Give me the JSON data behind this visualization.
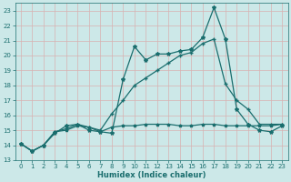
{
  "xlabel": "Humidex (Indice chaleur)",
  "bg_color": "#cce8e8",
  "grid_color": "#b8d8d8",
  "line_color": "#1a6e6e",
  "xlim": [
    -0.5,
    23.5
  ],
  "ylim": [
    13,
    23.5
  ],
  "yticks": [
    13,
    14,
    15,
    16,
    17,
    18,
    19,
    20,
    21,
    22,
    23
  ],
  "xticks": [
    0,
    1,
    2,
    3,
    4,
    5,
    6,
    7,
    8,
    9,
    10,
    11,
    12,
    13,
    14,
    15,
    16,
    17,
    18,
    19,
    20,
    21,
    22,
    23
  ],
  "line1_x": [
    0,
    1,
    2,
    3,
    4,
    5,
    6,
    7,
    8,
    9,
    10,
    11,
    12,
    13,
    14,
    15,
    16,
    17,
    18,
    19,
    20,
    21,
    22,
    23
  ],
  "line1_y": [
    14.1,
    13.6,
    14.0,
    14.8,
    15.3,
    15.4,
    15.0,
    14.9,
    14.8,
    18.4,
    20.6,
    19.7,
    20.1,
    20.1,
    20.3,
    20.4,
    21.2,
    23.2,
    21.1,
    16.4,
    15.4,
    15.0,
    14.9,
    15.3
  ],
  "line2_x": [
    0,
    1,
    2,
    3,
    4,
    5,
    6,
    7,
    8,
    9,
    10,
    11,
    12,
    13,
    14,
    15,
    16,
    17,
    18,
    19,
    20,
    21,
    22,
    23
  ],
  "line2_y": [
    14.1,
    13.6,
    14.0,
    14.9,
    15.1,
    15.4,
    15.2,
    15.0,
    16.1,
    17.0,
    18.0,
    18.5,
    19.0,
    19.5,
    20.0,
    20.2,
    20.8,
    21.1,
    18.1,
    17.0,
    16.4,
    15.4,
    15.4,
    15.4
  ],
  "line3_x": [
    0,
    1,
    2,
    3,
    4,
    5,
    6,
    7,
    8,
    9,
    10,
    11,
    12,
    13,
    14,
    15,
    16,
    17,
    18,
    19,
    20,
    21,
    22,
    23
  ],
  "line3_y": [
    14.1,
    13.6,
    14.0,
    14.9,
    15.0,
    15.3,
    15.2,
    14.9,
    15.2,
    15.3,
    15.3,
    15.4,
    15.4,
    15.4,
    15.3,
    15.3,
    15.4,
    15.4,
    15.3,
    15.3,
    15.3,
    15.3,
    15.3,
    15.4
  ]
}
